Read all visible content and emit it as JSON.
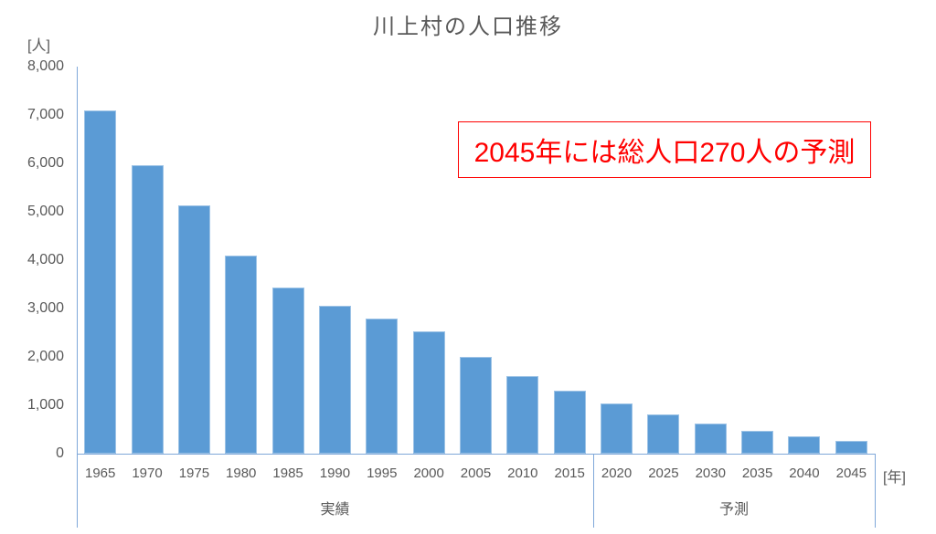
{
  "chart": {
    "title": "川上村の人口推移",
    "y_axis_unit": "[人]",
    "x_axis_unit": "[年]",
    "annotation": {
      "text": "2045年には総人口270人の予測",
      "color": "#FF0000"
    },
    "colors": {
      "bar": "#5B9BD5",
      "bar_border": "#9DC3E6",
      "axis_line": "#7FA8D9",
      "text": "#595959",
      "annotation": "#FF0000",
      "background": "#FFFFFF"
    }
  },
  "chart_data": {
    "type": "bar",
    "title": "川上村の人口推移",
    "ylabel": "[人]",
    "xlabel": "[年]",
    "ylim": [
      0,
      8000
    ],
    "y_tick_step": 1000,
    "y_tick_labels": [
      "0",
      "1,000",
      "2,000",
      "3,000",
      "4,000",
      "5,000",
      "6,000",
      "7,000",
      "8,000"
    ],
    "categories": [
      "1965",
      "1970",
      "1975",
      "1980",
      "1985",
      "1990",
      "1995",
      "2000",
      "2005",
      "2010",
      "2015",
      "2020",
      "2025",
      "2030",
      "2035",
      "2040",
      "2045"
    ],
    "values": [
      7100,
      5970,
      5140,
      4100,
      3430,
      3050,
      2790,
      2530,
      2000,
      1610,
      1300,
      1040,
      810,
      620,
      470,
      360,
      270
    ],
    "groups": [
      {
        "label": "実績",
        "start": "1965",
        "end": "2015",
        "count": 11
      },
      {
        "label": "予測",
        "start": "2020",
        "end": "2045",
        "count": 6
      }
    ],
    "annotation": "2045年には総人口270人の予測",
    "legend": false,
    "grid": false,
    "bar_color": "#5B9BD5"
  }
}
